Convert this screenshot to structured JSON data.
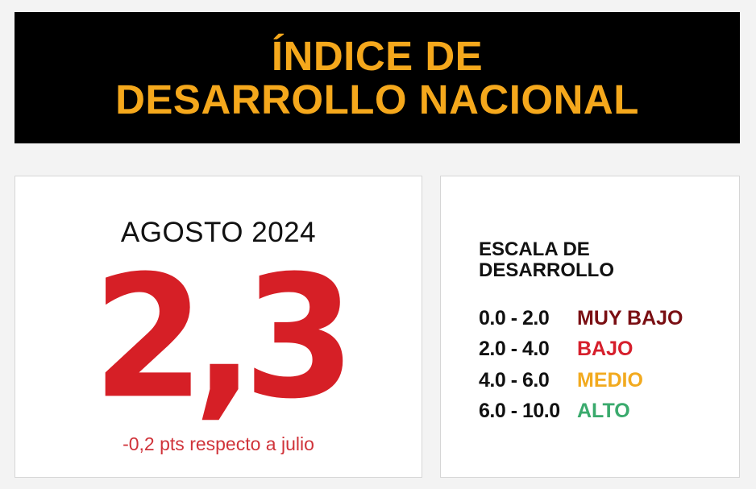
{
  "header": {
    "title_line1": "ÍNDICE DE",
    "title_line2": "DESARROLLO NACIONAL"
  },
  "index_card": {
    "period": "AGOSTO 2024",
    "value": "2,3",
    "change": "-0,2 pts respecto a julio"
  },
  "scale": {
    "title_line1": "ESCALA DE",
    "title_line2": "DESARROLLO",
    "rows": [
      {
        "range": "0.0 - 2.0",
        "label": "MUY BAJO",
        "color": "#7a0f13"
      },
      {
        "range": "2.0 - 4.0",
        "label": "BAJO",
        "color": "#d61f2c"
      },
      {
        "range": "4.0 - 6.0",
        "label": "MEDIO",
        "color": "#f2aa1f"
      },
      {
        "range": "6.0 - 10.0",
        "label": "ALTO",
        "color": "#3aaa6d"
      }
    ]
  }
}
